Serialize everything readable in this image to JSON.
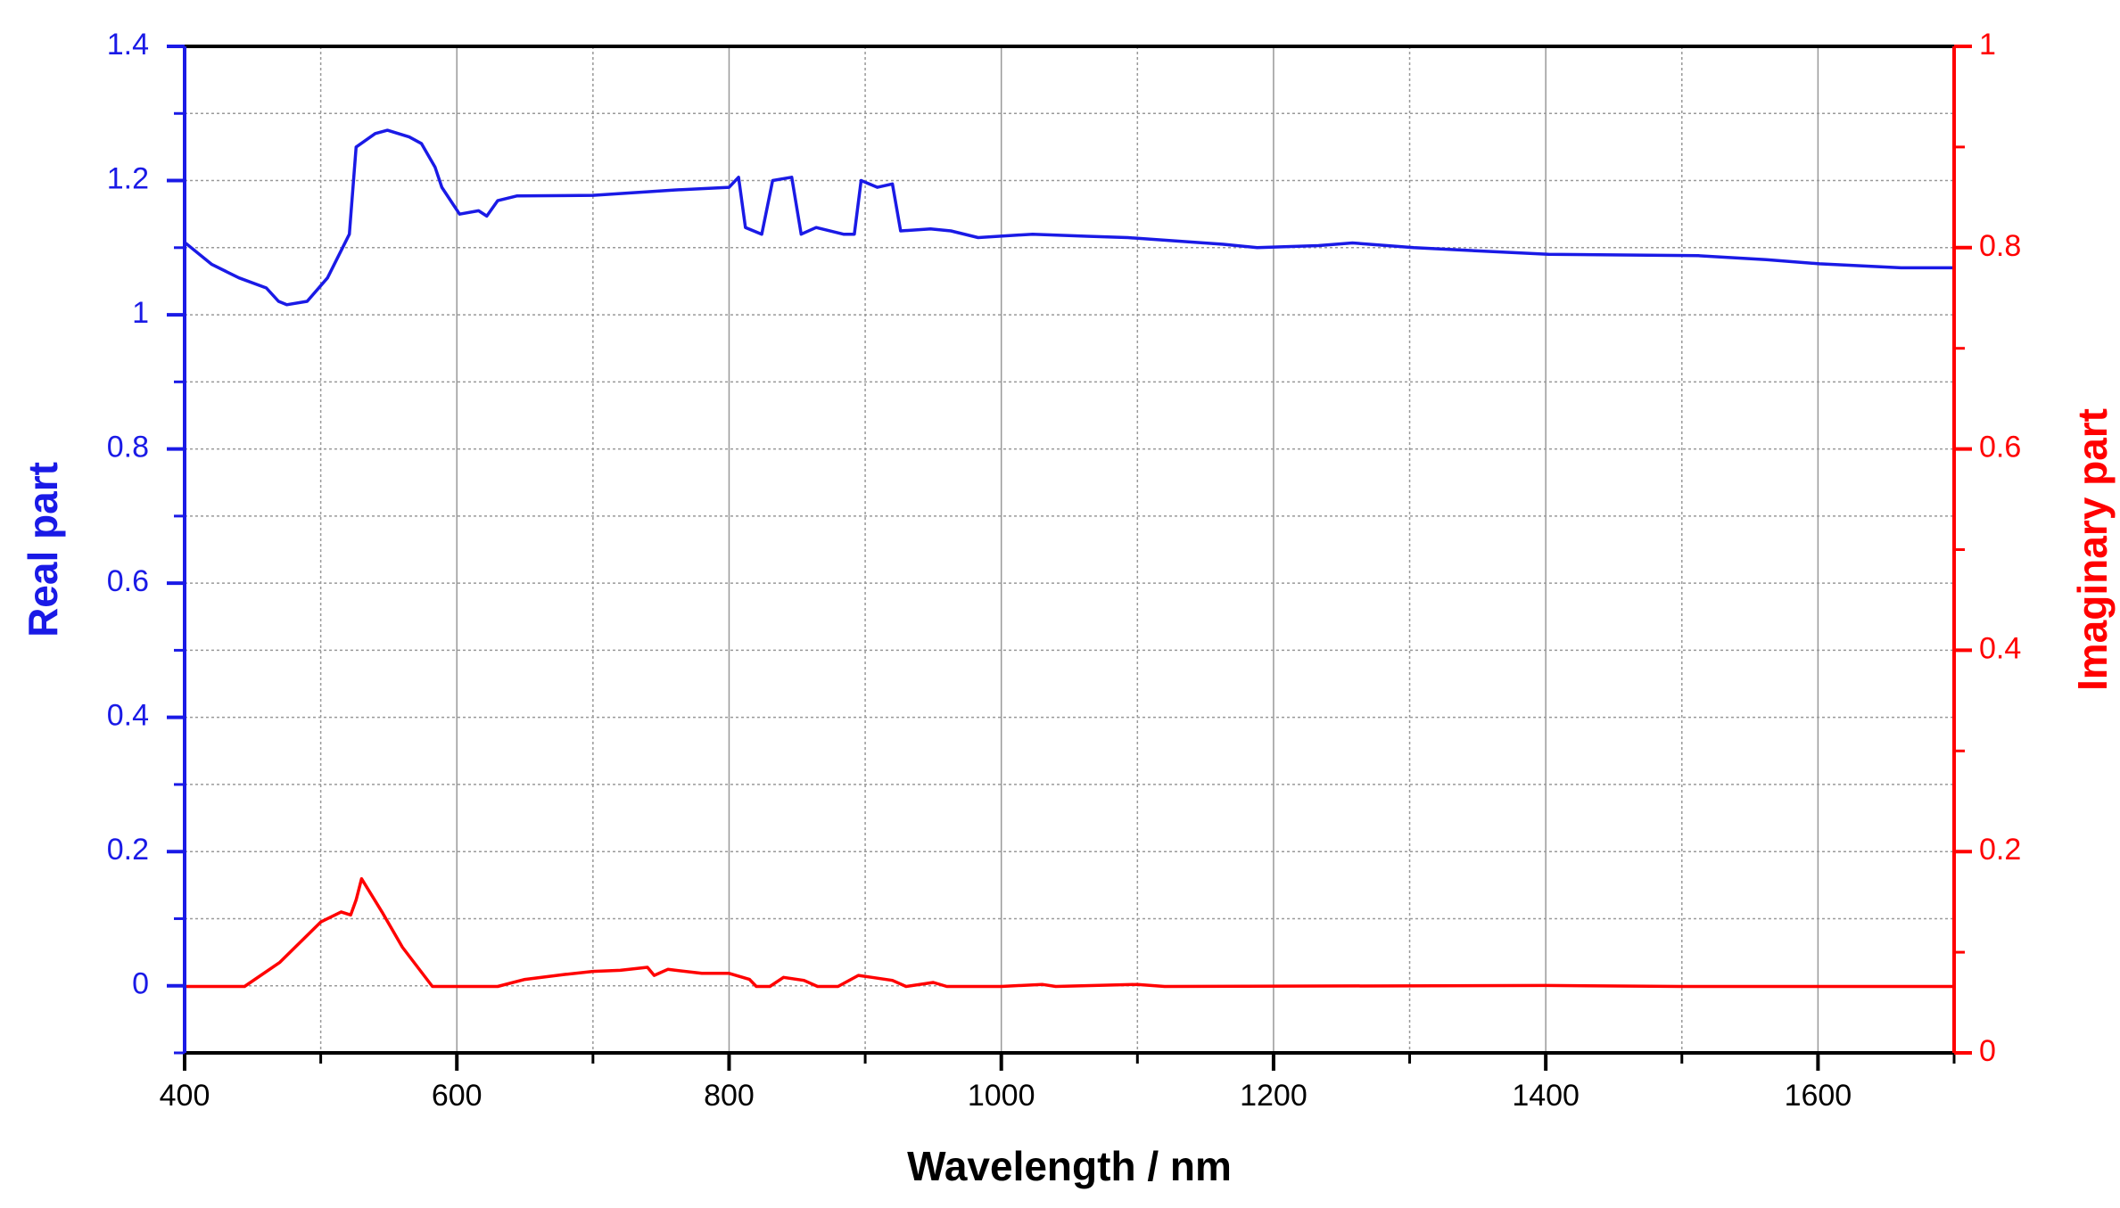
{
  "chart_data": {
    "type": "line",
    "xlabel": "Wavelength / nm",
    "ylabel": "Real part",
    "y2label": "Imaginary part",
    "xlim": [
      400,
      1700
    ],
    "xticks": [
      400,
      600,
      800,
      1000,
      1200,
      1400,
      1600
    ],
    "xminorticks": [
      500,
      700,
      900,
      1100,
      1300,
      1500,
      1700
    ],
    "ylim": [
      -0.1,
      1.4
    ],
    "yticks": [
      0,
      0.2,
      0.4,
      0.6,
      0.8,
      1,
      1.2,
      1.4
    ],
    "yminorticks": [
      -0.1,
      0.1,
      0.3,
      0.5,
      0.7,
      0.9,
      1.1,
      1.3
    ],
    "y2lim": [
      0,
      1
    ],
    "y2ticks": [
      0,
      0.2,
      0.4,
      0.6,
      0.8,
      1
    ],
    "y2minorticks": [
      0.1,
      0.3,
      0.5,
      0.7,
      0.9
    ],
    "grid": true,
    "ycolor": "#1a1ae6",
    "y2color": "#ff0000",
    "series": [
      {
        "color": "#1a1ae6",
        "x": [
          400,
          420,
          440,
          460,
          469,
          475,
          490,
          505,
          521,
          526,
          540,
          549,
          565,
          574,
          584,
          589,
          602,
          616,
          622,
          630,
          644,
          700,
          760,
          800,
          807,
          812,
          824,
          832,
          846,
          853,
          864,
          884,
          892,
          897,
          909,
          920,
          926,
          948,
          963,
          983,
          1023,
          1063,
          1093,
          1163,
          1188,
          1233,
          1258,
          1303,
          1402,
          1512,
          1562,
          1601,
          1661,
          1700
        ],
        "values": [
          1.108,
          1.075,
          1.055,
          1.04,
          1.02,
          1.015,
          1.02,
          1.055,
          1.12,
          1.25,
          1.27,
          1.275,
          1.265,
          1.255,
          1.22,
          1.19,
          1.15,
          1.155,
          1.147,
          1.17,
          1.177,
          1.178,
          1.186,
          1.19,
          1.205,
          1.13,
          1.12,
          1.2,
          1.205,
          1.12,
          1.13,
          1.12,
          1.12,
          1.2,
          1.19,
          1.195,
          1.125,
          1.128,
          1.125,
          1.115,
          1.12,
          1.117,
          1.115,
          1.105,
          1.1,
          1.103,
          1.107,
          1.1,
          1.09,
          1.088,
          1.082,
          1.076,
          1.07,
          1.07
        ]
      },
      {
        "color": "#ff0000",
        "axis": "y2",
        "x": [
          400,
          444,
          470,
          500,
          515,
          522,
          526,
          530,
          545,
          560,
          582,
          630,
          650,
          680,
          700,
          720,
          740,
          745,
          755,
          780,
          800,
          815,
          820,
          830,
          840,
          855,
          865,
          880,
          895,
          905,
          920,
          930,
          950,
          960,
          1000,
          1030,
          1040,
          1100,
          1120,
          1400,
          1500,
          1700
        ],
        "values": [
          0.066,
          0.066,
          0.09,
          0.13,
          0.14,
          0.137,
          0.152,
          0.173,
          0.14,
          0.105,
          0.066,
          0.066,
          0.073,
          0.078,
          0.081,
          0.082,
          0.085,
          0.077,
          0.083,
          0.079,
          0.079,
          0.073,
          0.066,
          0.066,
          0.075,
          0.072,
          0.066,
          0.066,
          0.077,
          0.075,
          0.072,
          0.066,
          0.07,
          0.066,
          0.066,
          0.068,
          0.066,
          0.068,
          0.066,
          0.067,
          0.066,
          0.066
        ]
      }
    ]
  }
}
